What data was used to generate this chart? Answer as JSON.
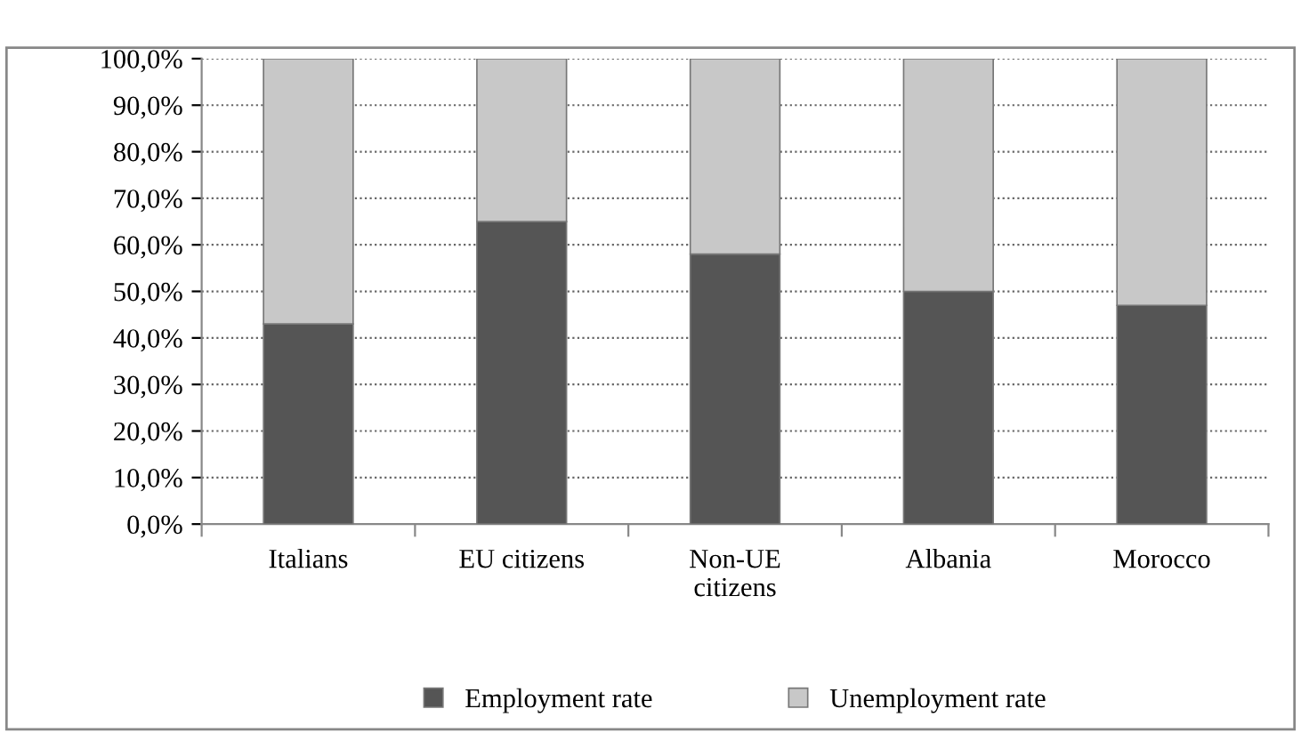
{
  "chart_data": {
    "type": "bar",
    "stacked": true,
    "categories": [
      "Italians",
      "EU citizens",
      "Non-UE\ncitizens",
      "Albania",
      "Morocco"
    ],
    "series": [
      {
        "name": "Employment rate",
        "color": "#555555",
        "values": [
          43,
          65,
          58,
          50,
          47
        ]
      },
      {
        "name": "Unemployment rate",
        "color": "#c8c8c8",
        "values": [
          57,
          35,
          42,
          50,
          53
        ]
      }
    ],
    "ylim": [
      0,
      100
    ],
    "yticks": [
      {
        "value": 0,
        "label": "0,0%"
      },
      {
        "value": 10,
        "label": "10,0%"
      },
      {
        "value": 20,
        "label": "20,0%"
      },
      {
        "value": 30,
        "label": "30,0%"
      },
      {
        "value": 40,
        "label": "40,0%"
      },
      {
        "value": 50,
        "label": "50,0%"
      },
      {
        "value": 60,
        "label": "60,0%"
      },
      {
        "value": 70,
        "label": "70,0%"
      },
      {
        "value": 80,
        "label": "80,0%"
      },
      {
        "value": 90,
        "label": "90,0%"
      },
      {
        "value": 100,
        "label": "100,0%"
      }
    ],
    "grid": "y",
    "legend": "bottom"
  }
}
